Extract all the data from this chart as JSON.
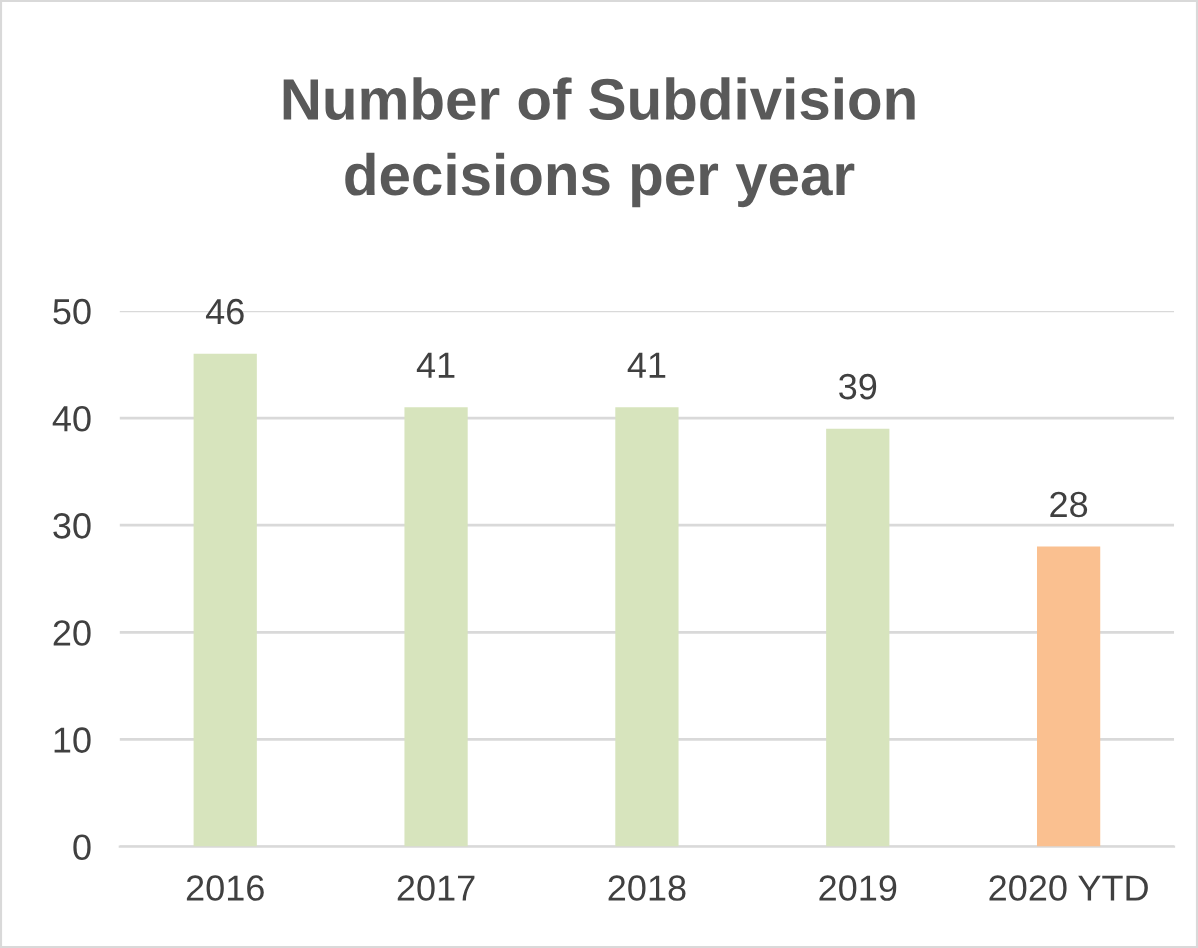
{
  "chart_data": {
    "type": "bar",
    "title": "Number of Subdivision\ndecisions per year",
    "categories": [
      "2016",
      "2017",
      "2018",
      "2019",
      "2020 YTD"
    ],
    "values": [
      46,
      41,
      41,
      39,
      28
    ],
    "colors": [
      "#d7e4bd",
      "#d7e4bd",
      "#d7e4bd",
      "#d7e4bd",
      "#fac090"
    ],
    "ylim": [
      0,
      50
    ],
    "yticks": [
      0,
      10,
      20,
      30,
      40,
      50
    ],
    "grid": "y",
    "data_labels": true
  }
}
